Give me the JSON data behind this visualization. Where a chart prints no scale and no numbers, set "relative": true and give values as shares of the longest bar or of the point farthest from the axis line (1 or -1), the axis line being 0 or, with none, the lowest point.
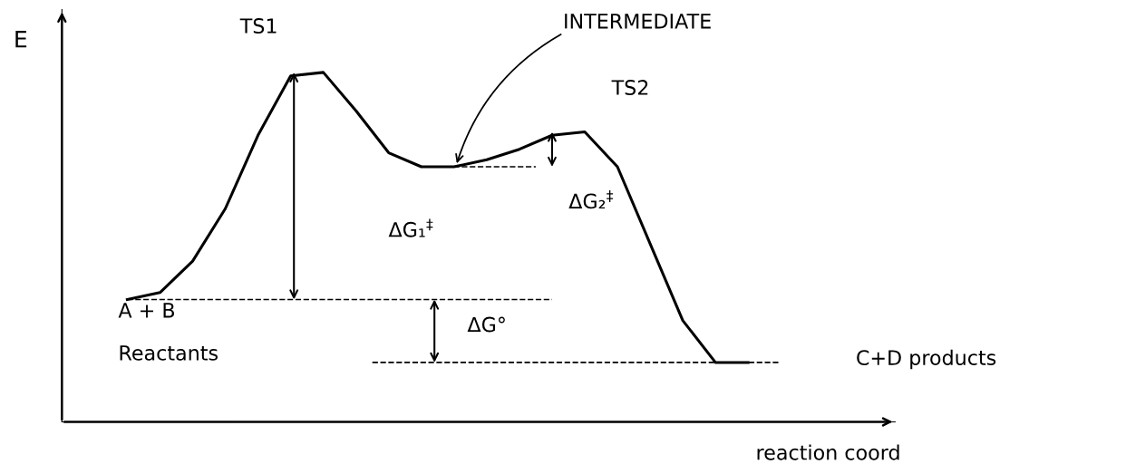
{
  "chart_data": {
    "type": "line",
    "relative": true,
    "xlabel": "reaction coord",
    "ylabel": "E",
    "color": "#000000",
    "line_style": "solid",
    "marker": "none",
    "categories": [
      null,
      null,
      null,
      null,
      null,
      null,
      null,
      null,
      null,
      null,
      null,
      null,
      null,
      null,
      null,
      null,
      null,
      null,
      null,
      null
    ],
    "values": [
      0.35,
      0.37,
      0.46,
      0.61,
      0.82,
      0.99,
      1.0,
      0.89,
      0.77,
      0.73,
      0.73,
      0.75,
      0.78,
      0.82,
      0.83,
      0.73,
      0.51,
      0.29,
      0.17,
      0.17
    ],
    "ref_lines": [
      {
        "axis": "y",
        "value": 0.35,
        "line_style": "dashed",
        "color": "#000000"
      },
      {
        "axis": "y",
        "value": 0.17,
        "line_style": "dashed",
        "color": "#000000"
      },
      {
        "axis": "y",
        "value": 0.73,
        "line_style": "dashed",
        "color": "#000000"
      }
    ],
    "annotations": [
      "TS1",
      "TS2",
      "INTERMEDIATE",
      "ΔG₁$^{‡}$",
      "ΔG₂$^{‡}$",
      "ΔG°",
      "A + B",
      "Reactants",
      "C+D products"
    ]
  }
}
